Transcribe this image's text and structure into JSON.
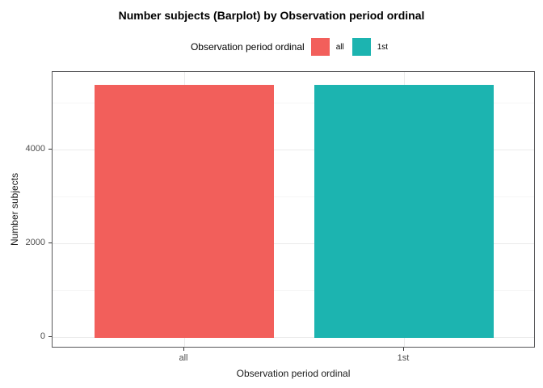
{
  "title": "Number subjects (Barplot) by Observation period ordinal",
  "legend": {
    "title": "Observation period ordinal",
    "items": [
      {
        "label": "all",
        "color": "#F25F5B"
      },
      {
        "label": "1st",
        "color": "#1CB4B0"
      }
    ]
  },
  "axes": {
    "x_title": "Observation period ordinal",
    "y_title": "Number subjects"
  },
  "chart_data": {
    "type": "bar",
    "title": "Number subjects (Barplot) by Observation period ordinal",
    "categories": [
      "all",
      "1st"
    ],
    "values": [
      5400,
      5400
    ],
    "bar_colors": [
      "#F25F5B",
      "#1CB4B0"
    ],
    "xlabel": "Observation period ordinal",
    "ylabel": "Number subjects",
    "ylim": [
      -225,
      5670
    ],
    "yticks": [
      0,
      2000,
      4000
    ],
    "ytick_labels": [
      "0",
      "2000",
      "4000"
    ],
    "yticks_minor": [
      1000,
      3000,
      5000
    ],
    "grid": true,
    "legend_position": "top",
    "legend_title": "Observation period ordinal",
    "legend_labels": [
      "all",
      "1st"
    ],
    "colors": {
      "grid_major": "#ebebeb",
      "grid_minor": "#f6f6f6",
      "panel_border": "#58585a",
      "tick_mark": "#333333",
      "tick_text": "#4d4d4d"
    }
  }
}
